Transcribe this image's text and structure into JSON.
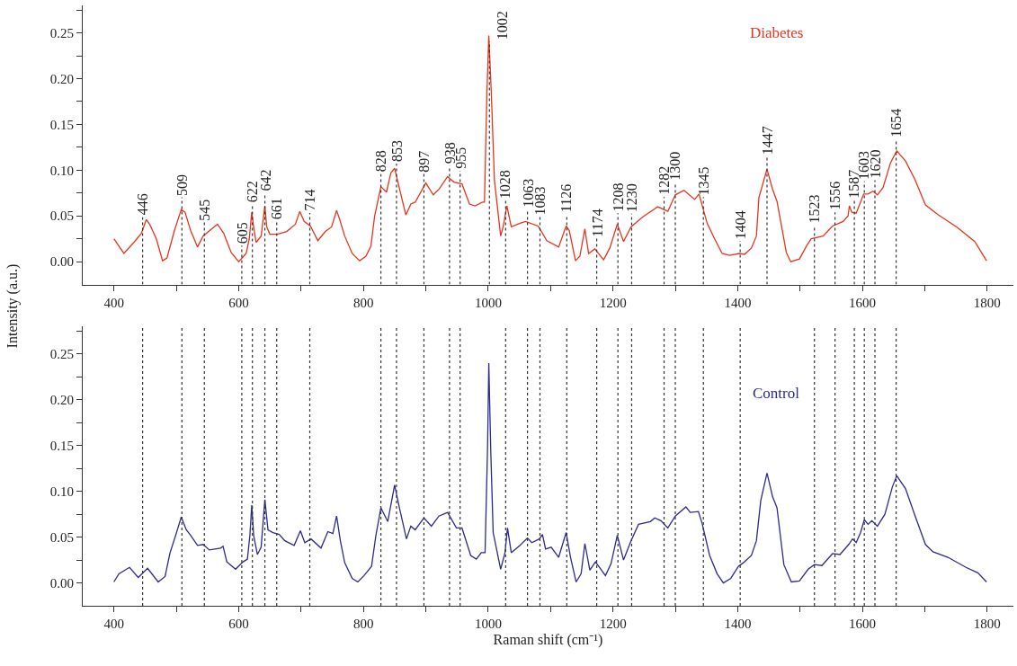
{
  "chart_data": [
    {
      "type": "line",
      "ylabel": "Intensity (a.u.)",
      "xlim": [
        350,
        1842
      ],
      "ylim": [
        -0.025,
        0.28
      ],
      "xticks": [
        400,
        {
          "value": 500,
          "label": null
        },
        600,
        {
          "value": 700,
          "label": null
        },
        800,
        {
          "value": 900,
          "label": null
        },
        1000,
        {
          "value": 1100,
          "label": null
        },
        1200,
        {
          "value": 1300,
          "label": null
        },
        1400,
        {
          "value": 1500,
          "label": null
        },
        1600,
        {
          "value": 1700,
          "label": null
        },
        1800
      ],
      "yticks": [
        {
          "value": 0,
          "label": "0.00"
        },
        {
          "value": 0.025,
          "label": null
        },
        {
          "value": 0.05,
          "label": "0.05"
        },
        {
          "value": 0.075,
          "label": null
        },
        {
          "value": 0.1,
          "label": "0.10"
        },
        {
          "value": 0.125,
          "label": null
        },
        {
          "value": 0.15,
          "label": "0.15"
        },
        {
          "value": 0.175,
          "label": null
        },
        {
          "value": 0.2,
          "label": "0.20"
        },
        {
          "value": 0.225,
          "label": null
        },
        {
          "value": 0.25,
          "label": "0.25"
        },
        {
          "value": 0.275,
          "label": null
        }
      ],
      "grid": false,
      "legend": false,
      "series": [
        {
          "name": "Diabetes",
          "color": "#e8341c",
          "x": [
            400,
            416,
            432,
            444,
            452,
            458,
            468,
            478,
            485,
            497,
            508,
            514,
            523,
            534,
            543,
            557,
            566,
            576,
            588,
            600,
            612,
            617,
            621,
            624,
            628,
            636,
            642,
            645,
            650,
            662,
            677,
            691,
            698,
            705,
            715,
            727,
            739,
            749,
            757,
            762,
            770,
            782,
            794,
            804,
            812,
            818,
            828,
            837,
            844,
            850,
            857,
            868,
            876,
            883,
            900,
            912,
            921,
            935,
            945,
            958,
            970,
            979,
            991,
            994,
            998,
            1001,
            1005,
            1010,
            1020,
            1024,
            1030,
            1037,
            1051,
            1060,
            1080,
            1094,
            1113,
            1125,
            1130,
            1140,
            1147,
            1155,
            1161,
            1171,
            1185,
            1195,
            1207,
            1217,
            1229,
            1248,
            1272,
            1288,
            1300,
            1314,
            1331,
            1338,
            1351,
            1363,
            1375,
            1387,
            1403,
            1411,
            1422,
            1430,
            1434,
            1447,
            1456,
            1463,
            1478,
            1485,
            1499,
            1511,
            1518,
            1537,
            1552,
            1569,
            1577,
            1579,
            1583,
            1590,
            1602,
            1609,
            1617,
            1624,
            1633,
            1645,
            1655,
            1669,
            1684,
            1701,
            1722,
            1751,
            1780,
            1799
          ],
          "values": [
            0.025,
            0.009,
            0.021,
            0.031,
            0.046,
            0.04,
            0.025,
            0.001,
            0.004,
            0.034,
            0.057,
            0.054,
            0.034,
            0.016,
            0.028,
            0.036,
            0.041,
            0.031,
            0.01,
            0.0,
            0.009,
            0.025,
            0.054,
            0.038,
            0.021,
            0.028,
            0.061,
            0.038,
            0.03,
            0.03,
            0.033,
            0.041,
            0.055,
            0.044,
            0.039,
            0.023,
            0.033,
            0.038,
            0.056,
            0.046,
            0.028,
            0.009,
            0.001,
            0.006,
            0.017,
            0.05,
            0.082,
            0.076,
            0.097,
            0.102,
            0.082,
            0.051,
            0.063,
            0.065,
            0.086,
            0.073,
            0.079,
            0.093,
            0.087,
            0.085,
            0.063,
            0.061,
            0.065,
            0.065,
            0.185,
            0.247,
            0.185,
            0.089,
            0.028,
            0.038,
            0.061,
            0.038,
            0.042,
            0.044,
            0.039,
            0.023,
            0.016,
            0.039,
            0.034,
            0.001,
            0.006,
            0.036,
            0.009,
            0.014,
            0.002,
            0.015,
            0.041,
            0.022,
            0.038,
            0.049,
            0.06,
            0.055,
            0.073,
            0.078,
            0.068,
            0.074,
            0.042,
            0.025,
            0.009,
            0.007,
            0.009,
            0.008,
            0.015,
            0.028,
            0.07,
            0.101,
            0.079,
            0.066,
            0.01,
            0.0,
            0.003,
            0.018,
            0.025,
            0.028,
            0.039,
            0.044,
            0.05,
            0.061,
            0.054,
            0.053,
            0.074,
            0.074,
            0.077,
            0.073,
            0.081,
            0.108,
            0.121,
            0.11,
            0.09,
            0.062,
            0.051,
            0.038,
            0.022,
            0.001
          ]
        }
      ],
      "ref_lines": [
        {
          "axis": "x",
          "value": 446,
          "label": "446",
          "line_style": "dotted",
          "color": "#333333"
        },
        {
          "axis": "x",
          "value": 509,
          "label": "509",
          "line_style": "dotted",
          "color": "#333333"
        },
        {
          "axis": "x",
          "value": 545,
          "label": "545",
          "line_style": "dotted",
          "color": "#333333"
        },
        {
          "axis": "x",
          "value": 605,
          "label": "605",
          "line_style": "dotted",
          "color": "#333333"
        },
        {
          "axis": "x",
          "value": 622,
          "label": "622",
          "line_style": "dotted",
          "color": "#333333"
        },
        {
          "axis": "x",
          "value": 642,
          "label": "642",
          "line_style": "dotted",
          "color": "#333333"
        },
        {
          "axis": "x",
          "value": 661,
          "label": "661",
          "line_style": "dotted",
          "color": "#333333"
        },
        {
          "axis": "x",
          "value": 714,
          "label": "714",
          "line_style": "dotted",
          "color": "#333333"
        },
        {
          "axis": "x",
          "value": 828,
          "label": "828",
          "line_style": "dotted",
          "color": "#333333"
        },
        {
          "axis": "x",
          "value": 853,
          "label": "853",
          "line_style": "dotted",
          "color": "#333333"
        },
        {
          "axis": "x",
          "value": 897,
          "label": "897",
          "line_style": "dotted",
          "color": "#333333"
        },
        {
          "axis": "x",
          "value": 938,
          "label": "938",
          "line_style": "dotted",
          "color": "#333333"
        },
        {
          "axis": "x",
          "value": 955,
          "label": "955",
          "line_style": "dotted",
          "color": "#333333"
        },
        {
          "axis": "x",
          "value": 1002,
          "label": "1002",
          "line_style": "dotted",
          "color": "#333333"
        },
        {
          "axis": "x",
          "value": 1028,
          "label": "1028",
          "line_style": "dotted",
          "color": "#333333"
        },
        {
          "axis": "x",
          "value": 1063,
          "label": "1063",
          "line_style": "dotted",
          "color": "#333333"
        },
        {
          "axis": "x",
          "value": 1083,
          "label": "1083",
          "line_style": "dotted",
          "color": "#333333"
        },
        {
          "axis": "x",
          "value": 1126,
          "label": "1126",
          "line_style": "dotted",
          "color": "#333333"
        },
        {
          "axis": "x",
          "value": 1174,
          "label": "1174",
          "line_style": "dotted",
          "color": "#333333"
        },
        {
          "axis": "x",
          "value": 1208,
          "label": "1208",
          "line_style": "dotted",
          "color": "#333333"
        },
        {
          "axis": "x",
          "value": 1230,
          "label": "1230",
          "line_style": "dotted",
          "color": "#333333"
        },
        {
          "axis": "x",
          "value": 1282,
          "label": "1282",
          "line_style": "dotted",
          "color": "#333333"
        },
        {
          "axis": "x",
          "value": 1300,
          "label": "1300",
          "line_style": "dotted",
          "color": "#333333"
        },
        {
          "axis": "x",
          "value": 1345,
          "label": "1345",
          "line_style": "dotted",
          "color": "#333333"
        },
        {
          "axis": "x",
          "value": 1404,
          "label": "1404",
          "line_style": "dotted",
          "color": "#333333"
        },
        {
          "axis": "x",
          "value": 1447,
          "label": "1447",
          "line_style": "dotted",
          "color": "#333333"
        },
        {
          "axis": "x",
          "value": 1523,
          "label": "1523",
          "line_style": "dotted",
          "color": "#333333"
        },
        {
          "axis": "x",
          "value": 1556,
          "label": "1556",
          "line_style": "dotted",
          "color": "#333333"
        },
        {
          "axis": "x",
          "value": 1587,
          "label": "1587",
          "line_style": "dotted",
          "color": "#333333"
        },
        {
          "axis": "x",
          "value": 1603,
          "label": "1603",
          "line_style": "dotted",
          "color": "#333333"
        },
        {
          "axis": "x",
          "value": 1620,
          "label": "1620",
          "line_style": "dotted",
          "color": "#333333"
        },
        {
          "axis": "x",
          "value": 1654,
          "label": "1654",
          "line_style": "dotted",
          "color": "#333333"
        }
      ]
    },
    {
      "type": "line",
      "xlabel": "Raman shift (cm⁻¹)",
      "xlim": [
        350,
        1842
      ],
      "ylim": [
        -0.025,
        0.28
      ],
      "xticks": [
        400,
        {
          "value": 500,
          "label": null
        },
        600,
        {
          "value": 700,
          "label": null
        },
        800,
        {
          "value": 900,
          "label": null
        },
        1000,
        {
          "value": 1100,
          "label": null
        },
        1200,
        {
          "value": 1300,
          "label": null
        },
        1400,
        {
          "value": 1500,
          "label": null
        },
        1600,
        {
          "value": 1700,
          "label": null
        },
        1800
      ],
      "yticks": [
        {
          "value": 0,
          "label": "0.00"
        },
        {
          "value": 0.025,
          "label": null
        },
        {
          "value": 0.05,
          "label": "0.05"
        },
        {
          "value": 0.075,
          "label": null
        },
        {
          "value": 0.1,
          "label": "0.10"
        },
        {
          "value": 0.125,
          "label": null
        },
        {
          "value": 0.15,
          "label": "0.15"
        },
        {
          "value": 0.175,
          "label": null
        },
        {
          "value": 0.2,
          "label": "0.20"
        },
        {
          "value": 0.225,
          "label": null
        },
        {
          "value": 0.25,
          "label": "0.25"
        },
        {
          "value": 0.275,
          "label": null
        }
      ],
      "grid": false,
      "legend": false,
      "series": [
        {
          "name": "Control",
          "color": "#2e2a8e",
          "x": [
            400,
            408,
            425,
            439,
            454,
            471,
            482,
            490,
            499,
            508,
            516,
            523,
            534,
            543,
            553,
            571,
            575,
            581,
            595,
            607,
            614,
            618,
            621,
            624,
            630,
            636,
            642,
            647,
            655,
            665,
            674,
            689,
            699,
            706,
            716,
            732,
            743,
            751,
            757,
            763,
            770,
            782,
            791,
            801,
            813,
            820,
            828,
            839,
            850,
            857,
            869,
            876,
            883,
            897,
            909,
            921,
            935,
            949,
            958,
            972,
            981,
            989,
            995,
            999,
            1001,
            1004,
            1008,
            1020,
            1027,
            1031,
            1037,
            1051,
            1063,
            1070,
            1082,
            1087,
            1092,
            1101,
            1113,
            1125,
            1132,
            1141,
            1149,
            1155,
            1163,
            1172,
            1188,
            1197,
            1207,
            1217,
            1229,
            1241,
            1260,
            1267,
            1277,
            1288,
            1300,
            1317,
            1324,
            1337,
            1343,
            1355,
            1367,
            1377,
            1389,
            1401,
            1409,
            1422,
            1430,
            1437,
            1447,
            1456,
            1463,
            1474,
            1486,
            1499,
            1513,
            1523,
            1535,
            1552,
            1564,
            1578,
            1584,
            1590,
            1597,
            1603,
            1609,
            1615,
            1624,
            1636,
            1648,
            1655,
            1669,
            1684,
            1701,
            1713,
            1737,
            1766,
            1785,
            1799
          ],
          "values": [
            0.001,
            0.01,
            0.017,
            0.006,
            0.016,
            0.001,
            0.007,
            0.033,
            0.052,
            0.072,
            0.058,
            0.052,
            0.041,
            0.042,
            0.036,
            0.038,
            0.04,
            0.023,
            0.015,
            0.023,
            0.026,
            0.052,
            0.085,
            0.052,
            0.031,
            0.039,
            0.091,
            0.058,
            0.055,
            0.053,
            0.046,
            0.041,
            0.057,
            0.044,
            0.048,
            0.038,
            0.056,
            0.054,
            0.073,
            0.046,
            0.022,
            0.005,
            0.001,
            0.008,
            0.018,
            0.052,
            0.082,
            0.067,
            0.107,
            0.084,
            0.048,
            0.062,
            0.058,
            0.071,
            0.062,
            0.073,
            0.077,
            0.06,
            0.06,
            0.03,
            0.026,
            0.033,
            0.033,
            0.148,
            0.24,
            0.148,
            0.055,
            0.015,
            0.033,
            0.06,
            0.033,
            0.041,
            0.049,
            0.044,
            0.048,
            0.053,
            0.037,
            0.039,
            0.028,
            0.055,
            0.028,
            0.001,
            0.01,
            0.043,
            0.014,
            0.023,
            0.008,
            0.021,
            0.052,
            0.025,
            0.046,
            0.064,
            0.067,
            0.071,
            0.068,
            0.06,
            0.073,
            0.083,
            0.077,
            0.078,
            0.065,
            0.03,
            0.01,
            0.0,
            0.005,
            0.018,
            0.022,
            0.03,
            0.046,
            0.09,
            0.12,
            0.094,
            0.082,
            0.02,
            0.001,
            0.002,
            0.015,
            0.02,
            0.019,
            0.032,
            0.031,
            0.042,
            0.048,
            0.044,
            0.055,
            0.069,
            0.064,
            0.068,
            0.062,
            0.075,
            0.105,
            0.117,
            0.103,
            0.074,
            0.042,
            0.034,
            0.028,
            0.017,
            0.011,
            0.001
          ]
        }
      ],
      "ref_lines": [
        {
          "axis": "x",
          "value": 446,
          "line_style": "dotted",
          "color": "#333333"
        },
        {
          "axis": "x",
          "value": 509,
          "line_style": "dotted",
          "color": "#333333"
        },
        {
          "axis": "x",
          "value": 545,
          "line_style": "dotted",
          "color": "#333333"
        },
        {
          "axis": "x",
          "value": 605,
          "line_style": "dotted",
          "color": "#333333"
        },
        {
          "axis": "x",
          "value": 622,
          "line_style": "dotted",
          "color": "#333333"
        },
        {
          "axis": "x",
          "value": 642,
          "line_style": "dotted",
          "color": "#333333"
        },
        {
          "axis": "x",
          "value": 661,
          "line_style": "dotted",
          "color": "#333333"
        },
        {
          "axis": "x",
          "value": 714,
          "line_style": "dotted",
          "color": "#333333"
        },
        {
          "axis": "x",
          "value": 828,
          "line_style": "dotted",
          "color": "#333333"
        },
        {
          "axis": "x",
          "value": 853,
          "line_style": "dotted",
          "color": "#333333"
        },
        {
          "axis": "x",
          "value": 897,
          "line_style": "dotted",
          "color": "#333333"
        },
        {
          "axis": "x",
          "value": 938,
          "line_style": "dotted",
          "color": "#333333"
        },
        {
          "axis": "x",
          "value": 955,
          "line_style": "dotted",
          "color": "#333333"
        },
        {
          "axis": "x",
          "value": 1028,
          "line_style": "dotted",
          "color": "#333333"
        },
        {
          "axis": "x",
          "value": 1063,
          "line_style": "dotted",
          "color": "#333333"
        },
        {
          "axis": "x",
          "value": 1083,
          "line_style": "dotted",
          "color": "#333333"
        },
        {
          "axis": "x",
          "value": 1126,
          "line_style": "dotted",
          "color": "#333333"
        },
        {
          "axis": "x",
          "value": 1174,
          "line_style": "dotted",
          "color": "#333333"
        },
        {
          "axis": "x",
          "value": 1208,
          "line_style": "dotted",
          "color": "#333333"
        },
        {
          "axis": "x",
          "value": 1230,
          "line_style": "dotted",
          "color": "#333333"
        },
        {
          "axis": "x",
          "value": 1282,
          "line_style": "dotted",
          "color": "#333333"
        },
        {
          "axis": "x",
          "value": 1300,
          "line_style": "dotted",
          "color": "#333333"
        },
        {
          "axis": "x",
          "value": 1345,
          "line_style": "dotted",
          "color": "#333333"
        },
        {
          "axis": "x",
          "value": 1404,
          "line_style": "dotted",
          "color": "#333333"
        },
        {
          "axis": "x",
          "value": 1523,
          "line_style": "dotted",
          "color": "#333333"
        },
        {
          "axis": "x",
          "value": 1556,
          "line_style": "dotted",
          "color": "#333333"
        },
        {
          "axis": "x",
          "value": 1587,
          "line_style": "dotted",
          "color": "#333333"
        },
        {
          "axis": "x",
          "value": 1603,
          "line_style": "dotted",
          "color": "#333333"
        },
        {
          "axis": "x",
          "value": 1620,
          "line_style": "dotted",
          "color": "#333333"
        },
        {
          "axis": "x",
          "value": 1654,
          "line_style": "dotted",
          "color": "#333333"
        }
      ]
    }
  ]
}
